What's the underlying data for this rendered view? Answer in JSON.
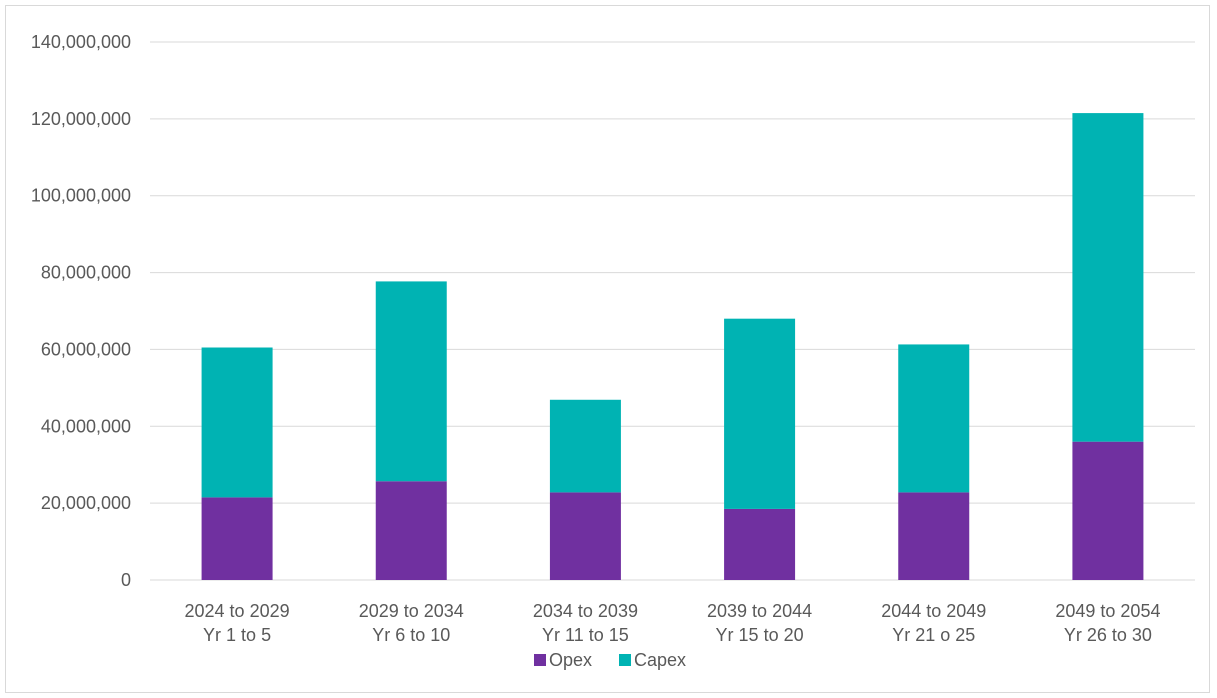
{
  "chart_data": {
    "type": "bar",
    "stacked": true,
    "categories": [
      [
        "2024 to 2029",
        "Yr 1 to 5"
      ],
      [
        "2029 to 2034",
        "Yr 6 to 10"
      ],
      [
        "2034 to 2039",
        "Yr 11 to 15"
      ],
      [
        "2039 to 2044",
        "Yr 15 to 20"
      ],
      [
        "2044 to 2049",
        "Yr 21 o 25"
      ],
      [
        "2049 to 2054",
        "Yr 26 to 30"
      ]
    ],
    "series": [
      {
        "name": "Opex",
        "color": "#7030a0",
        "values": [
          21500000,
          25700000,
          22800000,
          18500000,
          22800000,
          36000000
        ]
      },
      {
        "name": "Capex",
        "color": "#00b3b3",
        "values": [
          39000000,
          52000000,
          24100000,
          49500000,
          38500000,
          85500000
        ]
      }
    ],
    "y_ticks": [
      "0",
      "20,000,000",
      "40,000,000",
      "60,000,000",
      "80,000,000",
      "100,000,000",
      "120,000,000",
      "140,000,000"
    ],
    "ylim": [
      0,
      140000000
    ],
    "grid": true,
    "legend_position": "bottom"
  }
}
